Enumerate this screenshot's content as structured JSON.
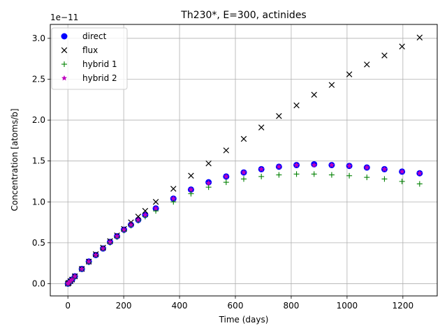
{
  "chart_data": {
    "type": "scatter",
    "title": "Th230*, E=300, actinides",
    "xlabel": "Time (days)",
    "ylabel": "Concentration [atoms/b]",
    "y_offset_label": "1e−11",
    "xlim": [
      -63,
      1323
    ],
    "ylim": [
      -0.15,
      3.17
    ],
    "xticks": [
      0,
      200,
      400,
      600,
      800,
      1000,
      1200
    ],
    "yticks": [
      0.0,
      0.5,
      1.0,
      1.5,
      2.0,
      2.5,
      3.0
    ],
    "ytick_labels": [
      "0.0",
      "0.5",
      "1.0",
      "1.5",
      "2.0",
      "2.5",
      "3.0"
    ],
    "grid": true,
    "legend_position": "upper-left",
    "x": [
      0,
      3,
      9,
      15,
      25,
      50,
      75,
      100,
      126,
      151,
      176,
      201,
      226,
      252,
      277,
      315,
      378,
      441,
      504,
      567,
      630,
      693,
      756,
      819,
      882,
      945,
      1008,
      1071,
      1134,
      1197,
      1260
    ],
    "series": [
      {
        "name": "direct",
        "marker": "circle",
        "color": "#0000ff",
        "values": [
          0.0,
          0.01,
          0.03,
          0.05,
          0.09,
          0.18,
          0.27,
          0.35,
          0.43,
          0.51,
          0.58,
          0.66,
          0.72,
          0.78,
          0.84,
          0.92,
          1.04,
          1.15,
          1.24,
          1.31,
          1.36,
          1.4,
          1.43,
          1.45,
          1.46,
          1.45,
          1.44,
          1.42,
          1.4,
          1.37,
          1.35
        ]
      },
      {
        "name": "flux",
        "marker": "x",
        "color": "#000000",
        "values": [
          0.0,
          0.01,
          0.03,
          0.05,
          0.09,
          0.18,
          0.27,
          0.36,
          0.44,
          0.52,
          0.59,
          0.67,
          0.75,
          0.82,
          0.89,
          1.0,
          1.16,
          1.32,
          1.47,
          1.63,
          1.77,
          1.91,
          2.05,
          2.18,
          2.31,
          2.43,
          2.56,
          2.68,
          2.79,
          2.9,
          3.01
        ]
      },
      {
        "name": "hybrid 1",
        "marker": "plus",
        "color": "#008000",
        "values": [
          0.0,
          0.01,
          0.03,
          0.05,
          0.09,
          0.18,
          0.26,
          0.35,
          0.43,
          0.5,
          0.57,
          0.65,
          0.71,
          0.77,
          0.82,
          0.89,
          1.0,
          1.1,
          1.18,
          1.24,
          1.28,
          1.31,
          1.33,
          1.34,
          1.34,
          1.33,
          1.32,
          1.3,
          1.28,
          1.25,
          1.22
        ]
      },
      {
        "name": "hybrid 2",
        "marker": "star",
        "color": "#bf00bf",
        "values": [
          0.0,
          0.01,
          0.03,
          0.05,
          0.09,
          0.18,
          0.27,
          0.35,
          0.43,
          0.51,
          0.58,
          0.66,
          0.72,
          0.78,
          0.84,
          0.92,
          1.04,
          1.15,
          1.23,
          1.31,
          1.36,
          1.4,
          1.43,
          1.45,
          1.45,
          1.45,
          1.44,
          1.42,
          1.4,
          1.37,
          1.35
        ]
      }
    ]
  }
}
